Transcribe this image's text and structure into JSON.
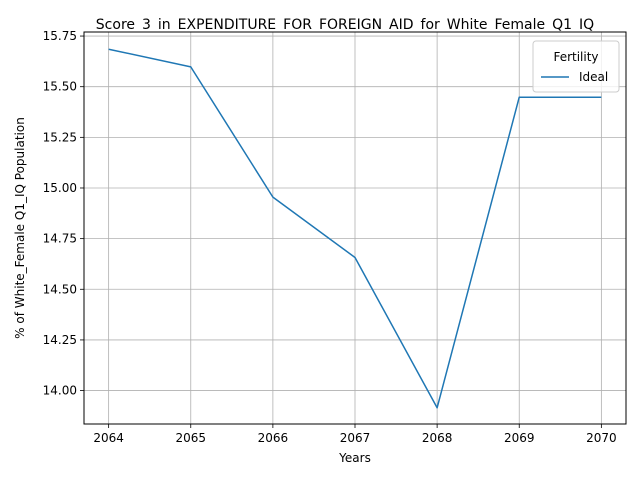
{
  "chart_data": {
    "type": "line",
    "title": "Score_3_in_EXPENDITURE_FOR_FOREIGN_AID_for_White_Female_Q1_IQ",
    "xlabel": "Years",
    "ylabel": "% of White_Female Q1_IQ Population",
    "x": [
      2064,
      2065,
      2066,
      2067,
      2068,
      2069,
      2070
    ],
    "series": [
      {
        "name": "Ideal",
        "color": "#1f77b4",
        "values": [
          15.685,
          15.598,
          14.955,
          14.657,
          13.915,
          15.448,
          15.448
        ]
      }
    ],
    "xlim": [
      2063.7,
      2070.3
    ],
    "ylim": [
      13.835,
      15.77
    ],
    "xticks": [
      "2064",
      "2065",
      "2066",
      "2067",
      "2068",
      "2069",
      "2070"
    ],
    "yticks": [
      "14.00",
      "14.25",
      "14.50",
      "14.75",
      "15.00",
      "15.25",
      "15.50",
      "15.75"
    ],
    "grid": true,
    "legend": {
      "title": "Fertility",
      "placement": "top-right"
    }
  }
}
